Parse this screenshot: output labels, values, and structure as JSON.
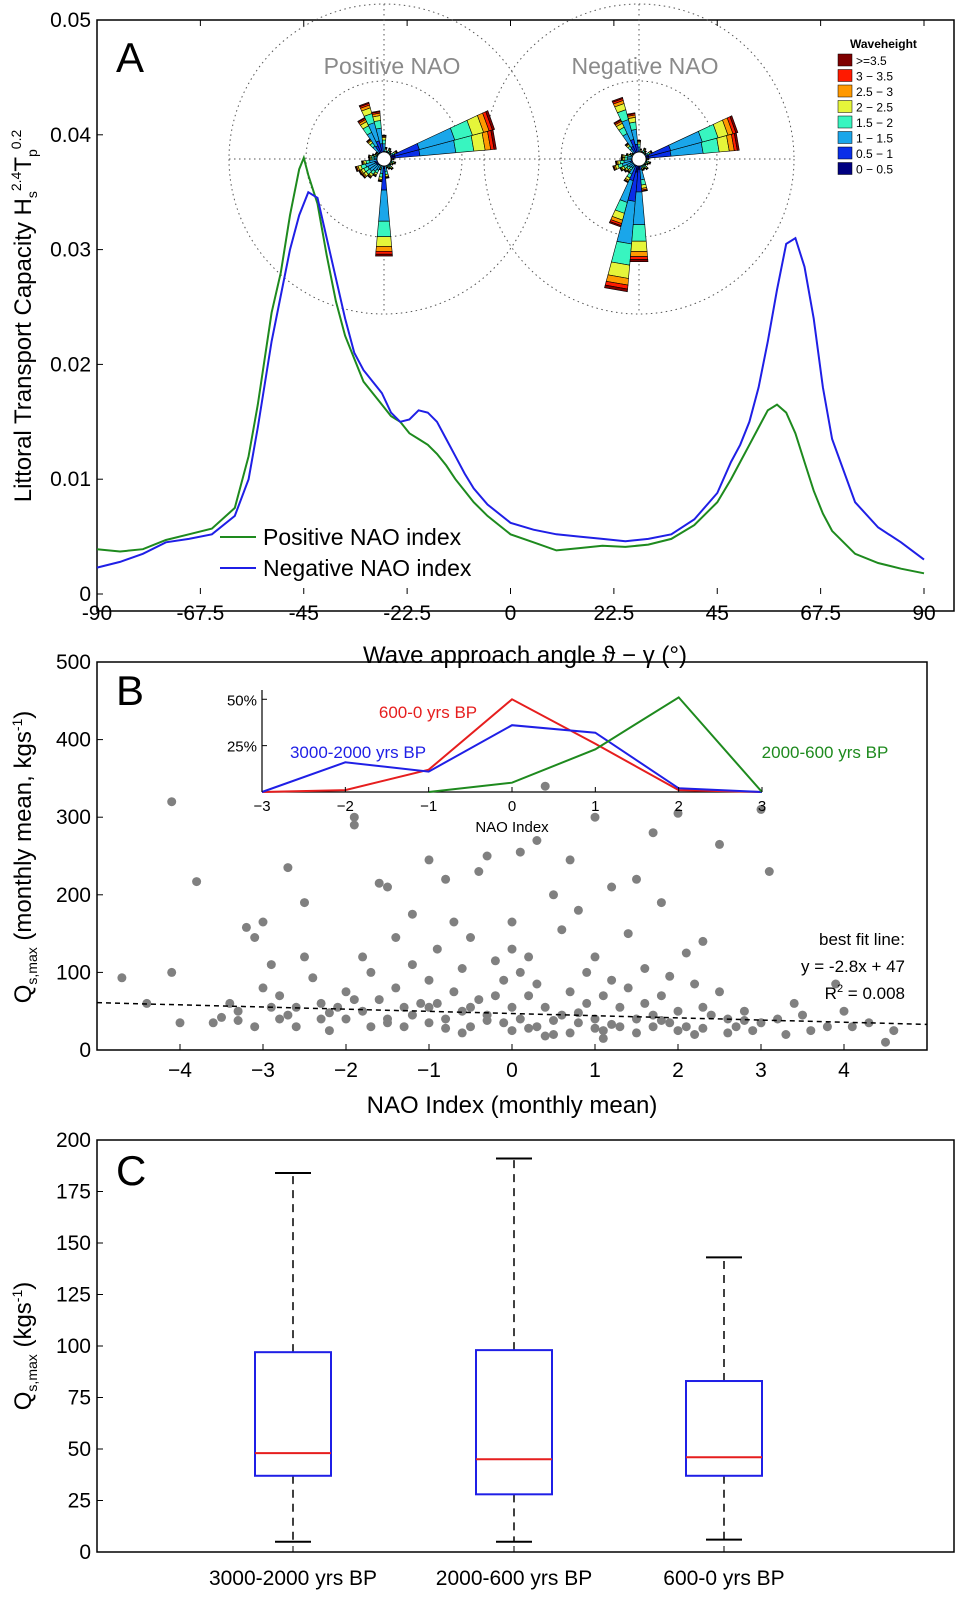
{
  "chart_data": [
    {
      "panel": "A",
      "type": "line",
      "ylabel": "Littoral Transport Capacity H",
      "ylabel_sub": "s",
      "ylabel_sup1": "2.4",
      "ylabel_mid": "T",
      "ylabel_sub2": "p",
      "ylabel_sup2": "0.2",
      "xlabel": "Wave approach angle ϑ − γ (°)",
      "xlim": [
        -90,
        90
      ],
      "ylim": [
        0,
        0.05
      ],
      "xticks": [
        "-90",
        "-67.5",
        "-45",
        "-22.5",
        "0",
        "22.5",
        "45",
        "67.5",
        "90"
      ],
      "yticks": [
        "0",
        "0.01",
        "0.02",
        "0.03",
        "0.04",
        "0.05"
      ],
      "legend_position": "bottom-left",
      "series": [
        {
          "name": "Positive NAO index",
          "color": "#1e8a1e",
          "x": [
            -90,
            -85,
            -80,
            -75,
            -70,
            -65,
            -60,
            -57,
            -55,
            -52,
            -50,
            -48,
            -46,
            -45,
            -44,
            -42,
            -40,
            -38,
            -36,
            -34,
            -32,
            -30,
            -28,
            -26,
            -24,
            -22,
            -20,
            -18,
            -16,
            -14,
            -12,
            -10,
            -8,
            -5,
            0,
            5,
            10,
            15,
            20,
            25,
            30,
            35,
            40,
            45,
            48,
            50,
            52,
            54,
            56,
            58,
            60,
            62,
            64,
            66,
            68,
            70,
            75,
            80,
            85,
            90
          ],
          "y": [
            0.0039,
            0.0037,
            0.0039,
            0.0047,
            0.0052,
            0.0057,
            0.0075,
            0.012,
            0.0165,
            0.0245,
            0.028,
            0.033,
            0.037,
            0.038,
            0.0365,
            0.034,
            0.0295,
            0.0255,
            0.0225,
            0.0205,
            0.0185,
            0.0175,
            0.0165,
            0.0155,
            0.015,
            0.014,
            0.0135,
            0.013,
            0.0122,
            0.0112,
            0.01,
            0.009,
            0.008,
            0.0068,
            0.0052,
            0.0045,
            0.0038,
            0.004,
            0.0042,
            0.0041,
            0.0043,
            0.0048,
            0.006,
            0.008,
            0.01,
            0.0115,
            0.013,
            0.0145,
            0.016,
            0.0165,
            0.0158,
            0.014,
            0.0115,
            0.009,
            0.007,
            0.0055,
            0.0035,
            0.0027,
            0.0022,
            0.0018
          ]
        },
        {
          "name": "Negative NAO index",
          "color": "#1f1fe6",
          "x": [
            -90,
            -85,
            -80,
            -75,
            -70,
            -65,
            -60,
            -57,
            -55,
            -52,
            -50,
            -48,
            -46,
            -44,
            -42,
            -40,
            -38,
            -36,
            -34,
            -32,
            -30,
            -28,
            -26,
            -24,
            -22,
            -20,
            -18,
            -16,
            -14,
            -12,
            -10,
            -8,
            -5,
            0,
            5,
            10,
            15,
            20,
            25,
            30,
            35,
            40,
            45,
            48,
            50,
            52,
            54,
            56,
            58,
            60,
            62,
            64,
            66,
            68,
            70,
            75,
            80,
            85,
            90
          ],
          "y": [
            0.0023,
            0.0028,
            0.0035,
            0.0045,
            0.0048,
            0.0052,
            0.0068,
            0.01,
            0.0145,
            0.022,
            0.026,
            0.03,
            0.033,
            0.035,
            0.0345,
            0.031,
            0.0275,
            0.024,
            0.021,
            0.0195,
            0.0185,
            0.0175,
            0.0158,
            0.015,
            0.0152,
            0.016,
            0.0158,
            0.015,
            0.0135,
            0.012,
            0.0105,
            0.0092,
            0.0078,
            0.0062,
            0.0056,
            0.0052,
            0.005,
            0.0048,
            0.0046,
            0.0048,
            0.0052,
            0.0065,
            0.0088,
            0.0115,
            0.013,
            0.015,
            0.018,
            0.022,
            0.0265,
            0.0305,
            0.031,
            0.0285,
            0.024,
            0.018,
            0.0135,
            0.008,
            0.0058,
            0.0045,
            0.003
          ]
        }
      ],
      "roses": {
        "titles": [
          "Positive NAO",
          "Negative NAO"
        ],
        "legend_title": "Waveheight",
        "bins": [
          {
            "label": ">=3.5",
            "color": "#7f0000"
          },
          {
            "label": "3 − 3.5",
            "color": "#ff1a00"
          },
          {
            "label": "2.5 − 3",
            "color": "#ff9900"
          },
          {
            "label": "2 − 2.5",
            "color": "#e5f53a"
          },
          {
            "label": "1.5 − 2",
            "color": "#38f5c0"
          },
          {
            "label": "1 − 1.5",
            "color": "#1aa6ea"
          },
          {
            "label": "0.5 − 1",
            "color": "#0a2ee8"
          },
          {
            "label": "0 − 0.5",
            "color": "#000080"
          }
        ]
      }
    },
    {
      "panel": "B",
      "type": "scatter",
      "ylabel": "Q",
      "ylabel_sub": "s,max",
      "ylabel_rest": " (monthly mean, kgs",
      "ylabel_sup": "-1",
      "ylabel_end": ")",
      "xlabel": "NAO Index (monthly mean)",
      "xlim": [
        -5,
        5
      ],
      "ylim": [
        0,
        500
      ],
      "xticks": [
        "−4",
        "−3",
        "−2",
        "−1",
        "0",
        "1",
        "2",
        "3",
        "4"
      ],
      "yticks": [
        "0",
        "100",
        "200",
        "300",
        "400",
        "500"
      ],
      "point_color": "#808080",
      "fit": {
        "slope": -2.8,
        "intercept": 47,
        "label1": "best fit line:",
        "label2": "y = -2.8x + 47",
        "label3_a": "R",
        "label3_sup": "2",
        "label3_b": " = 0.008"
      },
      "points": [
        [
          -4.7,
          93
        ],
        [
          -4.4,
          60
        ],
        [
          -4.1,
          320
        ],
        [
          -4.1,
          100
        ],
        [
          -4.0,
          35
        ],
        [
          -3.8,
          217
        ],
        [
          -3.6,
          35
        ],
        [
          -3.5,
          42
        ],
        [
          -3.4,
          60
        ],
        [
          -3.3,
          50
        ],
        [
          -3.2,
          158
        ],
        [
          -3.1,
          145
        ],
        [
          -3.1,
          30
        ],
        [
          -3.0,
          165
        ],
        [
          -3.0,
          80
        ],
        [
          -2.9,
          110
        ],
        [
          -2.9,
          55
        ],
        [
          -2.8,
          40
        ],
        [
          -2.8,
          70
        ],
        [
          -2.7,
          235
        ],
        [
          -2.6,
          55
        ],
        [
          -2.6,
          30
        ],
        [
          -2.5,
          120
        ],
        [
          -2.5,
          190
        ],
        [
          -2.4,
          93
        ],
        [
          -2.3,
          40
        ],
        [
          -2.3,
          60
        ],
        [
          -2.2,
          25
        ],
        [
          -2.1,
          55
        ],
        [
          -2.0,
          75
        ],
        [
          -2.0,
          40
        ],
        [
          -1.9,
          300
        ],
        [
          -1.9,
          290
        ],
        [
          -1.9,
          65
        ],
        [
          -1.8,
          120
        ],
        [
          -1.8,
          50
        ],
        [
          -1.7,
          100
        ],
        [
          -1.7,
          30
        ],
        [
          -1.6,
          215
        ],
        [
          -1.6,
          65
        ],
        [
          -1.5,
          210
        ],
        [
          -1.5,
          40
        ],
        [
          -1.4,
          145
        ],
        [
          -1.4,
          80
        ],
        [
          -1.3,
          55
        ],
        [
          -1.3,
          30
        ],
        [
          -1.2,
          175
        ],
        [
          -1.2,
          110
        ],
        [
          -1.1,
          60
        ],
        [
          -1.0,
          245
        ],
        [
          -1.0,
          90
        ],
        [
          -1.0,
          35
        ],
        [
          -0.9,
          130
        ],
        [
          -0.9,
          60
        ],
        [
          -0.8,
          220
        ],
        [
          -0.8,
          40
        ],
        [
          -0.7,
          165
        ],
        [
          -0.7,
          75
        ],
        [
          -0.6,
          105
        ],
        [
          -0.6,
          50
        ],
        [
          -0.5,
          145
        ],
        [
          -0.5,
          30
        ],
        [
          -0.4,
          230
        ],
        [
          -0.4,
          65
        ],
        [
          -0.3,
          250
        ],
        [
          -0.3,
          45
        ],
        [
          -0.2,
          115
        ],
        [
          -0.2,
          70
        ],
        [
          -0.1,
          90
        ],
        [
          -0.1,
          35
        ],
        [
          0.0,
          165
        ],
        [
          0.0,
          130
        ],
        [
          0.0,
          55
        ],
        [
          0.0,
          25
        ],
        [
          0.1,
          255
        ],
        [
          0.1,
          100
        ],
        [
          0.1,
          40
        ],
        [
          0.2,
          120
        ],
        [
          0.2,
          70
        ],
        [
          0.3,
          270
        ],
        [
          0.3,
          85
        ],
        [
          0.3,
          30
        ],
        [
          0.4,
          340
        ],
        [
          0.4,
          55
        ],
        [
          0.5,
          200
        ],
        [
          0.5,
          20
        ],
        [
          0.6,
          155
        ],
        [
          0.6,
          45
        ],
        [
          0.7,
          245
        ],
        [
          0.7,
          75
        ],
        [
          0.8,
          180
        ],
        [
          0.8,
          35
        ],
        [
          0.9,
          100
        ],
        [
          0.9,
          60
        ],
        [
          1.0,
          300
        ],
        [
          1.0,
          120
        ],
        [
          1.0,
          40
        ],
        [
          1.1,
          70
        ],
        [
          1.1,
          25
        ],
        [
          1.2,
          210
        ],
        [
          1.2,
          90
        ],
        [
          1.3,
          55
        ],
        [
          1.3,
          30
        ],
        [
          1.4,
          150
        ],
        [
          1.4,
          80
        ],
        [
          1.5,
          220
        ],
        [
          1.5,
          40
        ],
        [
          1.6,
          105
        ],
        [
          1.6,
          60
        ],
        [
          1.7,
          280
        ],
        [
          1.7,
          45
        ],
        [
          1.8,
          190
        ],
        [
          1.8,
          70
        ],
        [
          1.9,
          35
        ],
        [
          1.9,
          95
        ],
        [
          2.0,
          305
        ],
        [
          2.0,
          50
        ],
        [
          2.1,
          125
        ],
        [
          2.1,
          30
        ],
        [
          2.2,
          85
        ],
        [
          2.2,
          20
        ],
        [
          2.3,
          140
        ],
        [
          2.3,
          55
        ],
        [
          2.4,
          45
        ],
        [
          2.5,
          265
        ],
        [
          2.5,
          75
        ],
        [
          2.6,
          40
        ],
        [
          2.7,
          30
        ],
        [
          2.8,
          50
        ],
        [
          2.9,
          25
        ],
        [
          3.0,
          310
        ],
        [
          3.0,
          35
        ],
        [
          3.1,
          230
        ],
        [
          3.2,
          40
        ],
        [
          3.3,
          20
        ],
        [
          3.4,
          60
        ],
        [
          3.5,
          45
        ],
        [
          3.6,
          25
        ],
        [
          3.8,
          30
        ],
        [
          3.9,
          85
        ],
        [
          4.0,
          50
        ],
        [
          4.1,
          30
        ],
        [
          4.3,
          35
        ],
        [
          4.5,
          10
        ],
        [
          4.6,
          25
        ],
        [
          -1.5,
          35
        ],
        [
          -1.2,
          45
        ],
        [
          -0.8,
          28
        ],
        [
          -0.5,
          55
        ],
        [
          -0.3,
          38
        ],
        [
          0.2,
          28
        ],
        [
          0.5,
          38
        ],
        [
          0.7,
          22
        ],
        [
          1.0,
          28
        ],
        [
          1.2,
          33
        ],
        [
          1.5,
          22
        ],
        [
          1.8,
          38
        ],
        [
          2.0,
          25
        ],
        [
          2.3,
          28
        ],
        [
          2.6,
          22
        ],
        [
          -2.2,
          48
        ],
        [
          -2.7,
          45
        ],
        [
          -3.3,
          38
        ],
        [
          -1.0,
          55
        ],
        [
          0.8,
          48
        ],
        [
          1.7,
          30
        ],
        [
          2.8,
          38
        ],
        [
          -0.6,
          22
        ],
        [
          0.4,
          18
        ],
        [
          1.1,
          15
        ]
      ],
      "inset": {
        "type": "line",
        "xlabel": "NAO Index",
        "xlim": [
          -3,
          3
        ],
        "ylim": [
          0,
          0.55
        ],
        "xticks": [
          "−3",
          "−2",
          "−1",
          "0",
          "1",
          "2",
          "3"
        ],
        "yticks": [
          "25%",
          "50%"
        ],
        "series": [
          {
            "name": "600-0 yrs BP",
            "color": "#e61e1e",
            "x": [
              -3,
              -2,
              -1,
              0,
              1,
              2,
              3
            ],
            "y": [
              0,
              0.01,
              0.12,
              0.5,
              0.26,
              0.01,
              0
            ]
          },
          {
            "name": "3000-2000 yrs BP",
            "color": "#1f1fe6",
            "x": [
              -3,
              -2,
              -1,
              0,
              1,
              2,
              3
            ],
            "y": [
              0,
              0.16,
              0.11,
              0.36,
              0.32,
              0.02,
              0
            ]
          },
          {
            "name": "2000-600 yrs BP",
            "color": "#1e8a1e",
            "x": [
              -1,
              0,
              1,
              2,
              3
            ],
            "y": [
              0,
              0.05,
              0.23,
              0.51,
              0
            ]
          }
        ]
      }
    },
    {
      "panel": "C",
      "type": "box",
      "ylabel": "Q",
      "ylabel_sub": "s,max",
      "ylabel_rest": " (kgs",
      "ylabel_sup": "-1",
      "ylabel_end": ")",
      "ylim": [
        0,
        200
      ],
      "yticks": [
        "0",
        "25",
        "50",
        "75",
        "100",
        "125",
        "150",
        "175",
        "200"
      ],
      "categories": [
        "3000-2000 yrs BP",
        "2000-600 yrs BP",
        "600-0 yrs BP"
      ],
      "box_color": "#1f1fe6",
      "median_color": "#e61e1e",
      "boxes": [
        {
          "min": 5,
          "q1": 37,
          "median": 48,
          "q3": 97,
          "max": 184
        },
        {
          "min": 5,
          "q1": 28,
          "median": 45,
          "q3": 98,
          "max": 191
        },
        {
          "min": 6,
          "q1": 37,
          "median": 46,
          "q3": 83,
          "max": 143
        }
      ]
    }
  ]
}
